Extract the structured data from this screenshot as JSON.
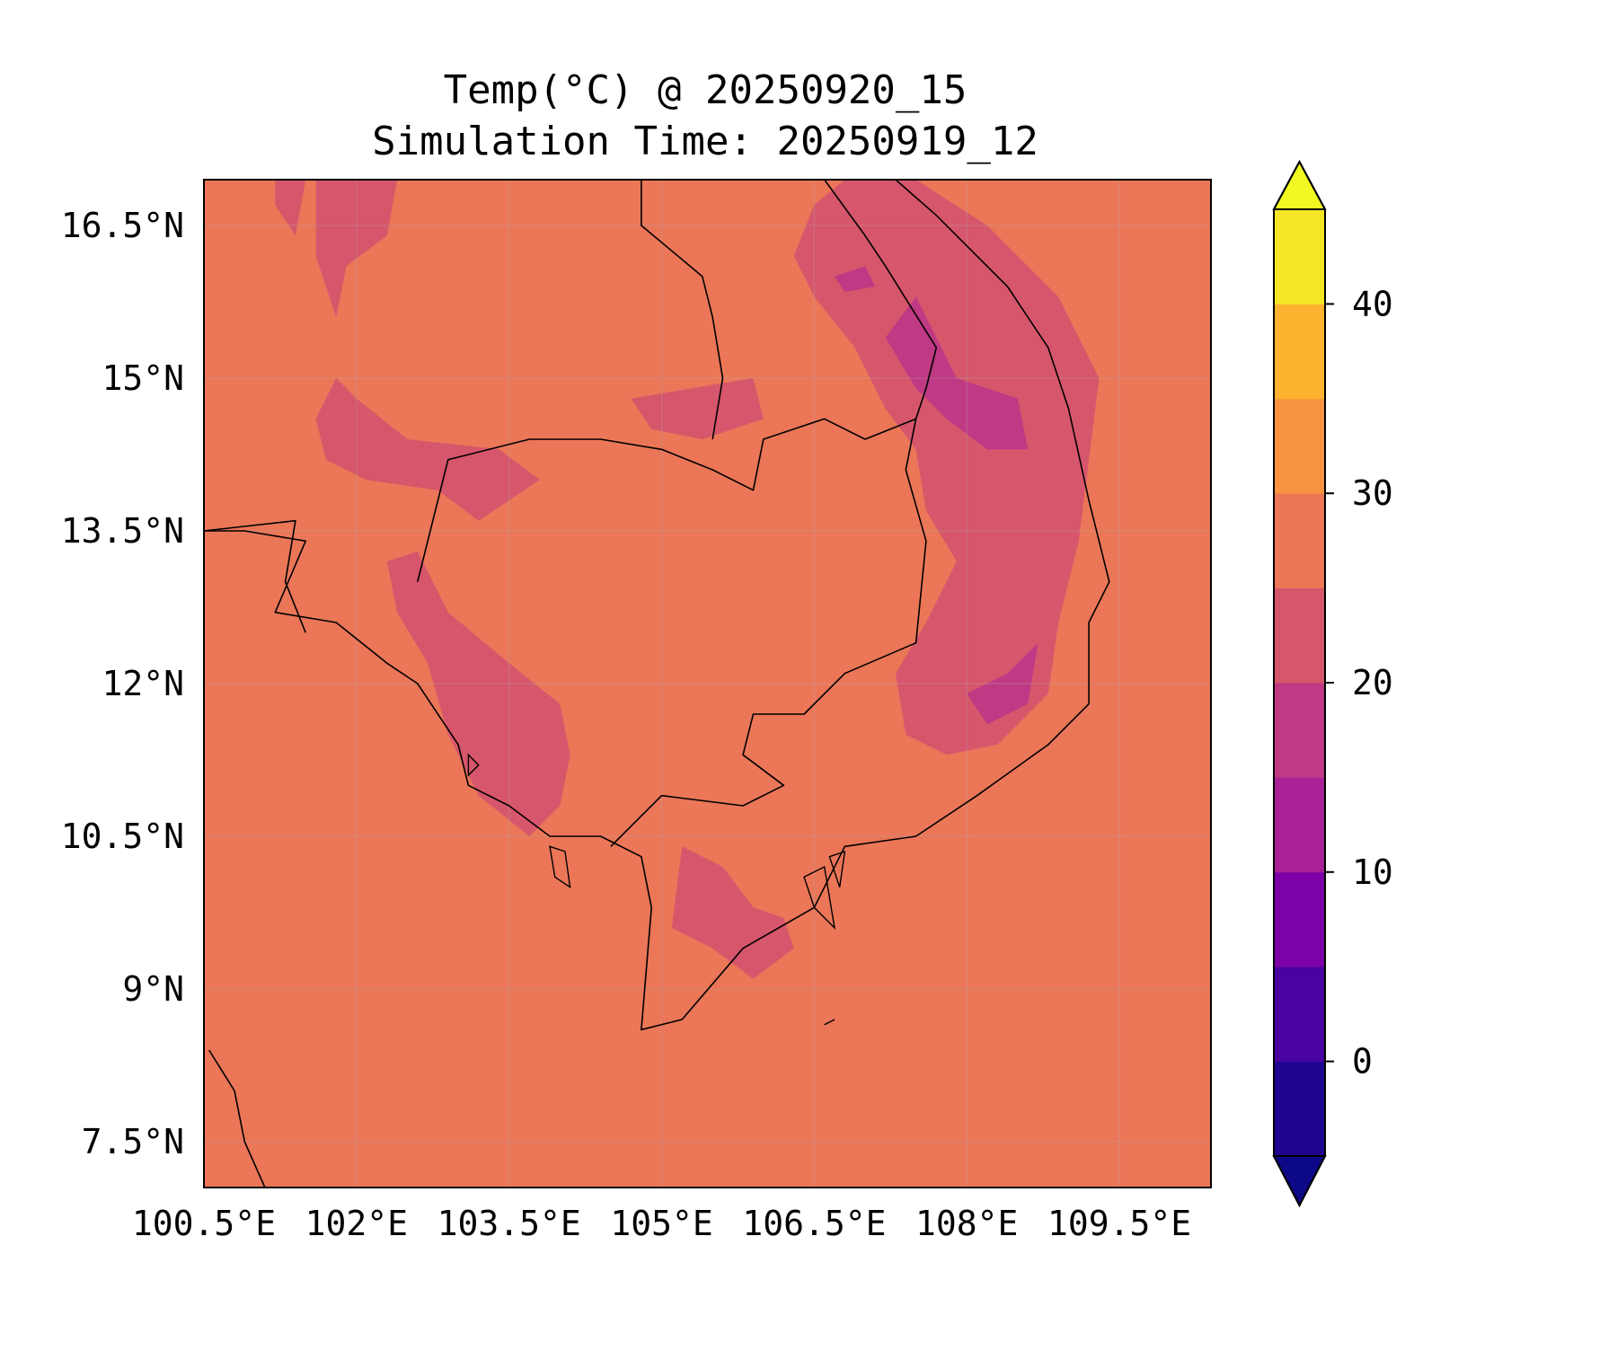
{
  "title": {
    "line1": "Temp(°C) @ 20250920_15",
    "line2": "Simulation Time: 20250919_12"
  },
  "map": {
    "lon_range": [
      100.5,
      110.4
    ],
    "lat_range": [
      7.05,
      16.95
    ],
    "lon_ticks": [
      {
        "value": 100.5,
        "label": "100.5°E"
      },
      {
        "value": 102.0,
        "label": "102°E"
      },
      {
        "value": 103.5,
        "label": "103.5°E"
      },
      {
        "value": 105.0,
        "label": "105°E"
      },
      {
        "value": 106.5,
        "label": "106.5°E"
      },
      {
        "value": 108.0,
        "label": "108°E"
      },
      {
        "value": 109.5,
        "label": "109.5°E"
      }
    ],
    "lat_ticks": [
      {
        "value": 16.5,
        "label": "16.5°N"
      },
      {
        "value": 15.0,
        "label": "15°N"
      },
      {
        "value": 13.5,
        "label": "13.5°N"
      },
      {
        "value": 12.0,
        "label": "12°N"
      },
      {
        "value": 10.5,
        "label": "10.5°N"
      },
      {
        "value": 9.0,
        "label": "9°N"
      },
      {
        "value": 7.5,
        "label": "7.5°N"
      }
    ],
    "gridlines": true,
    "background_color": "#eb7658",
    "field_note": "Temperature field mostly 25–30 °C with cooler 15–25 °C patches over highlands",
    "regions": [
      {
        "level": 22.5,
        "color": "#d6566c",
        "points": [
          [
            107.5,
            16.95
          ],
          [
            108.2,
            16.5
          ],
          [
            108.9,
            15.8
          ],
          [
            109.3,
            15.0
          ],
          [
            109.2,
            14.2
          ],
          [
            109.1,
            13.4
          ],
          [
            108.9,
            12.6
          ],
          [
            108.8,
            11.9
          ],
          [
            108.3,
            11.4
          ],
          [
            107.8,
            11.3
          ],
          [
            107.4,
            11.5
          ],
          [
            107.3,
            12.1
          ],
          [
            107.6,
            12.6
          ],
          [
            107.9,
            13.2
          ],
          [
            107.6,
            13.7
          ],
          [
            107.5,
            14.3
          ],
          [
            107.2,
            14.7
          ],
          [
            106.9,
            15.3
          ],
          [
            106.5,
            15.8
          ],
          [
            106.3,
            16.2
          ],
          [
            106.5,
            16.7
          ],
          [
            106.8,
            16.95
          ]
        ]
      },
      {
        "level": 22.5,
        "color": "#d6566c",
        "points": [
          [
            102.3,
            13.2
          ],
          [
            102.6,
            13.3
          ],
          [
            102.9,
            12.7
          ],
          [
            103.5,
            12.2
          ],
          [
            104.0,
            11.8
          ],
          [
            104.1,
            11.3
          ],
          [
            104.0,
            10.8
          ],
          [
            103.7,
            10.5
          ],
          [
            103.2,
            10.9
          ],
          [
            102.9,
            11.5
          ],
          [
            102.7,
            12.2
          ],
          [
            102.4,
            12.7
          ]
        ]
      },
      {
        "level": 22.5,
        "color": "#d6566c",
        "points": [
          [
            101.6,
            16.95
          ],
          [
            102.4,
            16.95
          ],
          [
            102.3,
            16.4
          ],
          [
            101.9,
            16.1
          ],
          [
            101.8,
            15.6
          ],
          [
            101.6,
            16.2
          ]
        ]
      },
      {
        "level": 22.5,
        "color": "#d6566c",
        "points": [
          [
            101.2,
            16.95
          ],
          [
            101.5,
            16.95
          ],
          [
            101.4,
            16.4
          ],
          [
            101.2,
            16.7
          ]
        ]
      },
      {
        "level": 22.5,
        "color": "#d6566c",
        "points": [
          [
            101.6,
            14.6
          ],
          [
            101.8,
            15.0
          ],
          [
            102.0,
            14.8
          ],
          [
            102.5,
            14.4
          ],
          [
            103.4,
            14.3
          ],
          [
            103.8,
            14.0
          ],
          [
            103.2,
            13.6
          ],
          [
            102.8,
            13.9
          ],
          [
            102.1,
            14.0
          ],
          [
            101.7,
            14.2
          ]
        ]
      },
      {
        "level": 22.5,
        "color": "#d6566c",
        "points": [
          [
            105.2,
            10.4
          ],
          [
            105.6,
            10.2
          ],
          [
            105.9,
            9.8
          ],
          [
            106.2,
            9.7
          ],
          [
            106.3,
            9.4
          ],
          [
            105.9,
            9.1
          ],
          [
            105.5,
            9.4
          ],
          [
            105.1,
            9.6
          ]
        ]
      },
      {
        "level": 22.5,
        "color": "#d6566c",
        "points": [
          [
            104.7,
            14.8
          ],
          [
            105.3,
            14.9
          ],
          [
            105.9,
            15.0
          ],
          [
            106.0,
            14.6
          ],
          [
            105.4,
            14.4
          ],
          [
            104.9,
            14.5
          ]
        ]
      }
    ],
    "cold_regions": [
      {
        "level": 17.5,
        "color": "#bf3984",
        "points": [
          [
            107.2,
            15.4
          ],
          [
            107.5,
            15.8
          ],
          [
            107.9,
            15.0
          ],
          [
            108.5,
            14.8
          ],
          [
            108.6,
            14.3
          ],
          [
            108.2,
            14.3
          ],
          [
            107.8,
            14.6
          ],
          [
            107.5,
            14.9
          ]
        ]
      },
      {
        "level": 17.5,
        "color": "#bf3984",
        "points": [
          [
            108.0,
            11.9
          ],
          [
            108.4,
            12.1
          ],
          [
            108.7,
            12.4
          ],
          [
            108.6,
            11.8
          ],
          [
            108.2,
            11.6
          ]
        ]
      },
      {
        "level": 17.5,
        "color": "#bf3984",
        "points": [
          [
            106.7,
            16.0
          ],
          [
            107.0,
            16.1
          ],
          [
            107.1,
            15.9
          ],
          [
            106.8,
            15.85
          ]
        ]
      }
    ],
    "coastline": [
      [
        100.5,
        13.5
      ],
      [
        100.9,
        13.5
      ],
      [
        101.5,
        13.4
      ],
      [
        101.2,
        12.7
      ],
      [
        101.8,
        12.6
      ],
      [
        102.3,
        12.2
      ],
      [
        102.6,
        12.0
      ],
      [
        103.0,
        11.4
      ],
      [
        103.1,
        11.0
      ],
      [
        103.5,
        10.8
      ],
      [
        103.9,
        10.5
      ],
      [
        104.4,
        10.5
      ],
      [
        104.8,
        10.3
      ],
      [
        104.9,
        9.8
      ],
      [
        104.8,
        8.6
      ],
      [
        105.2,
        8.7
      ],
      [
        105.8,
        9.4
      ],
      [
        106.5,
        9.8
      ],
      [
        106.8,
        10.4
      ],
      [
        107.5,
        10.5
      ],
      [
        108.1,
        10.9
      ],
      [
        108.8,
        11.4
      ],
      [
        109.2,
        11.8
      ],
      [
        109.2,
        12.6
      ],
      [
        109.4,
        13.0
      ],
      [
        109.2,
        13.8
      ],
      [
        109.0,
        14.7
      ],
      [
        108.8,
        15.3
      ],
      [
        108.4,
        15.9
      ],
      [
        108.0,
        16.3
      ],
      [
        107.7,
        16.6
      ],
      [
        107.3,
        16.95
      ]
    ],
    "coastline_south": [
      [
        100.55,
        8.4
      ],
      [
        100.8,
        8.0
      ],
      [
        100.9,
        7.5
      ],
      [
        101.1,
        7.05
      ]
    ],
    "border_cambodia": [
      [
        102.6,
        13.0
      ],
      [
        102.9,
        14.2
      ],
      [
        103.7,
        14.4
      ],
      [
        104.4,
        14.4
      ],
      [
        105.0,
        14.3
      ],
      [
        105.5,
        14.1
      ],
      [
        105.9,
        13.9
      ],
      [
        106.0,
        14.4
      ],
      [
        106.6,
        14.6
      ],
      [
        107.0,
        14.4
      ],
      [
        107.5,
        14.6
      ],
      [
        107.4,
        14.1
      ],
      [
        107.6,
        13.4
      ],
      [
        107.5,
        12.4
      ],
      [
        106.8,
        12.1
      ],
      [
        106.4,
        11.7
      ],
      [
        105.9,
        11.7
      ],
      [
        105.8,
        11.3
      ],
      [
        106.2,
        11.0
      ],
      [
        105.8,
        10.8
      ],
      [
        105.0,
        10.9
      ],
      [
        104.5,
        10.4
      ]
    ],
    "border_laos": [
      [
        104.8,
        16.95
      ],
      [
        104.8,
        16.5
      ],
      [
        105.4,
        16.0
      ],
      [
        105.5,
        15.6
      ],
      [
        105.6,
        15.0
      ],
      [
        105.5,
        14.4
      ]
    ],
    "border_laos_vn": [
      [
        106.6,
        16.95
      ],
      [
        107.0,
        16.4
      ],
      [
        107.2,
        16.1
      ],
      [
        107.7,
        15.3
      ],
      [
        107.6,
        14.9
      ],
      [
        107.5,
        14.6
      ]
    ],
    "border_thai": [
      [
        100.5,
        13.5
      ],
      [
        101.4,
        13.6
      ],
      [
        101.3,
        13.0
      ],
      [
        101.5,
        12.5
      ]
    ],
    "islands": [
      [
        [
          103.9,
          10.4
        ],
        [
          104.05,
          10.35
        ],
        [
          104.1,
          10.0
        ],
        [
          103.95,
          10.1
        ]
      ],
      [
        [
          106.4,
          10.1
        ],
        [
          106.6,
          10.2
        ],
        [
          106.7,
          9.6
        ],
        [
          106.5,
          9.8
        ]
      ],
      [
        [
          106.65,
          10.3
        ],
        [
          106.8,
          10.35
        ],
        [
          106.75,
          10.0
        ]
      ],
      [
        [
          106.7,
          8.7
        ],
        [
          106.6,
          8.65
        ]
      ],
      [
        [
          103.1,
          11.3
        ],
        [
          103.2,
          11.2
        ],
        [
          103.1,
          11.1
        ]
      ]
    ]
  },
  "colorbar": {
    "levels": [
      -5,
      0,
      5,
      10,
      15,
      20,
      25,
      30,
      35,
      40,
      45
    ],
    "colors": [
      "#20068f",
      "#4903a0",
      "#7c02a8",
      "#a82296",
      "#bf3984",
      "#d6566c",
      "#eb7658",
      "#f89441",
      "#fdb32f",
      "#f4e626"
    ],
    "under_color": "#0d0887",
    "over_color": "#f0f921",
    "ticks": [
      {
        "value": 0,
        "label": "0"
      },
      {
        "value": 10,
        "label": "10"
      },
      {
        "value": 20,
        "label": "20"
      },
      {
        "value": 30,
        "label": "30"
      },
      {
        "value": 40,
        "label": "40"
      }
    ]
  }
}
